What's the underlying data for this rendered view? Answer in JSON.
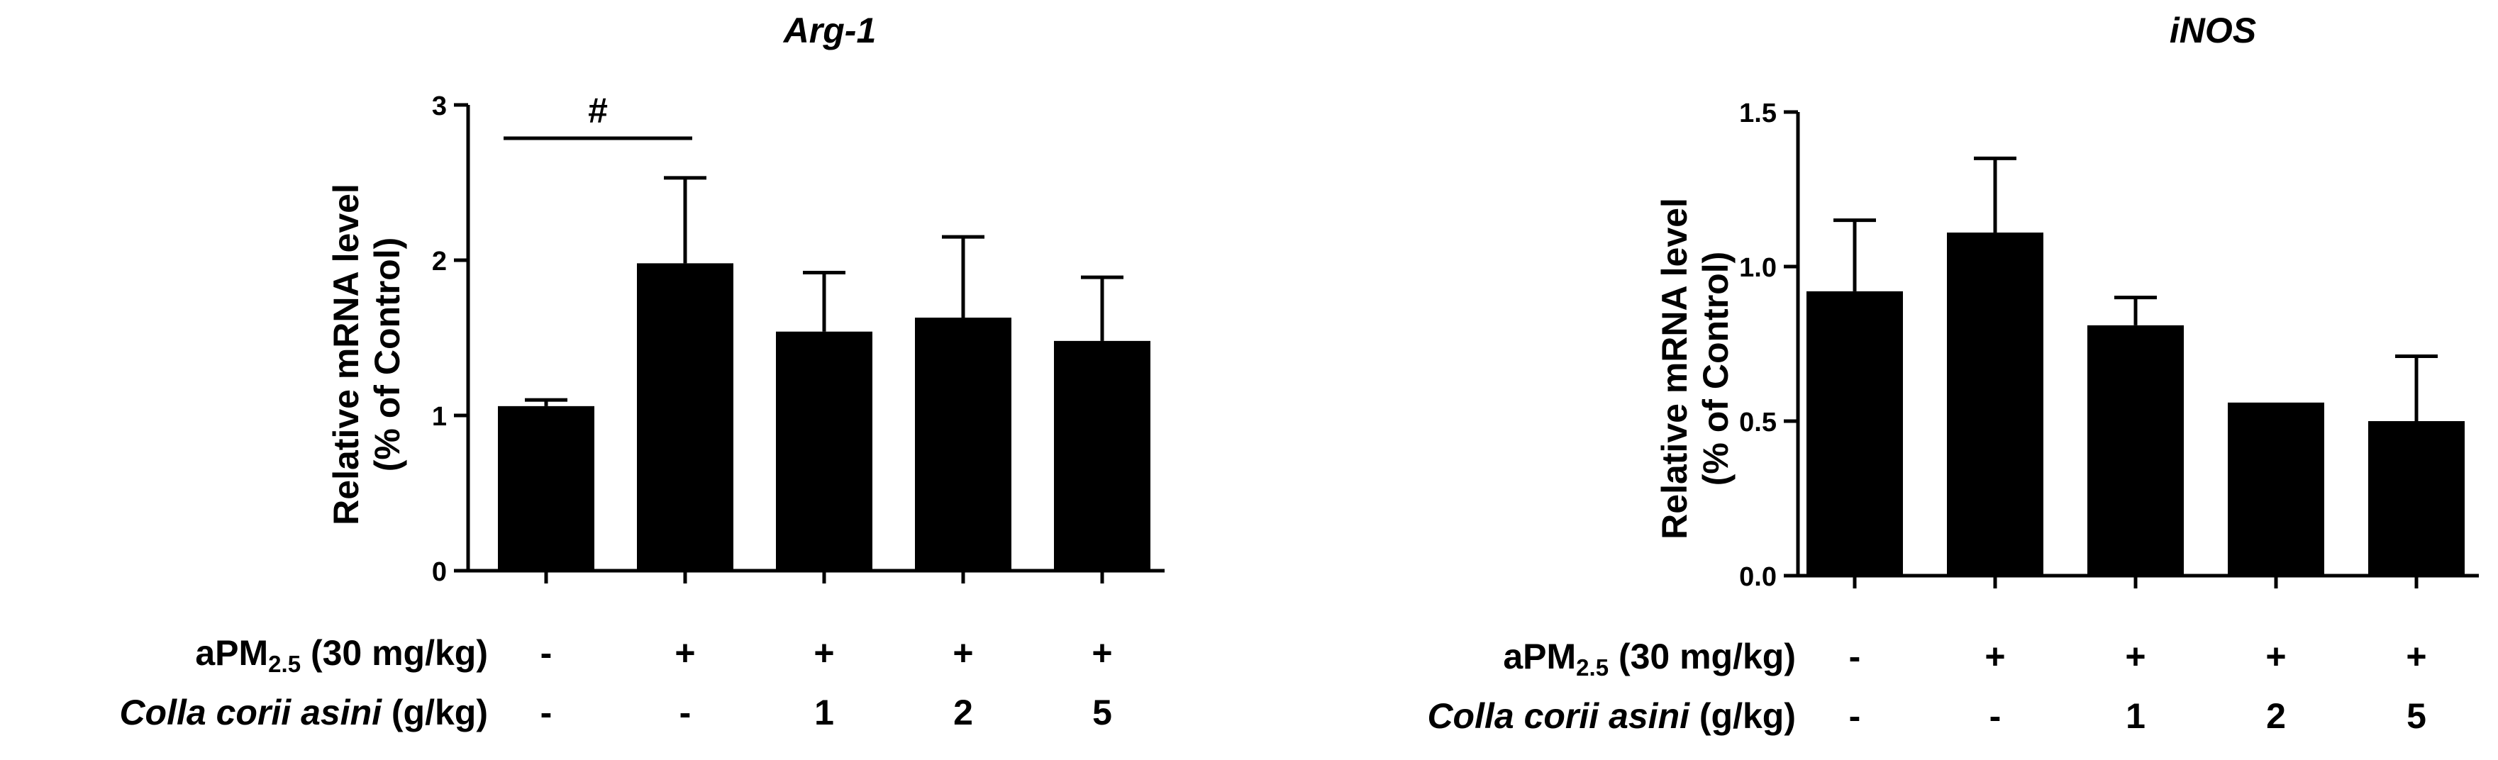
{
  "chart_data": [
    {
      "type": "bar",
      "title": "Arg-1",
      "ylabel_line1": "Relative mRNA level",
      "ylabel_line2": "(% of Control)",
      "ylim": [
        0,
        3
      ],
      "yticks": [
        "0",
        "1",
        "2",
        "3"
      ],
      "ytick_values": [
        0,
        1,
        2,
        3
      ],
      "values": [
        1.06,
        1.98,
        1.54,
        1.63,
        1.48
      ],
      "errors": [
        0.04,
        0.55,
        0.38,
        0.52,
        0.41
      ],
      "aPM_row": [
        "-",
        "+",
        "+",
        "+",
        "+"
      ],
      "colla_row": [
        "-",
        "-",
        "1",
        "2",
        "5"
      ],
      "significance": {
        "symbol": "#",
        "from_bar": 0,
        "to_bar": 1
      }
    },
    {
      "type": "bar",
      "title": "iNOS",
      "ylabel_line1": "Relative mRNA level",
      "ylabel_line2": "(% of Control)",
      "ylim": [
        0,
        1.5
      ],
      "yticks": [
        "0.0",
        "0.5",
        "1.0",
        "1.5"
      ],
      "ytick_values": [
        0,
        0.5,
        1.0,
        1.5
      ],
      "values": [
        0.92,
        1.11,
        0.81,
        0.56,
        0.5
      ],
      "errors": [
        0.23,
        0.24,
        0.09,
        0.0,
        0.21
      ],
      "aPM_row": [
        "-",
        "+",
        "+",
        "+",
        "+"
      ],
      "colla_row": [
        "-",
        "-",
        "1",
        "2",
        "5"
      ]
    }
  ],
  "row_labels": {
    "apm_prefix": "aPM",
    "apm_subscript": "2.5",
    "apm_suffix": " (30 mg/kg)",
    "colla_italic": "Colla corii asini",
    "colla_suffix": " (g/kg)"
  }
}
